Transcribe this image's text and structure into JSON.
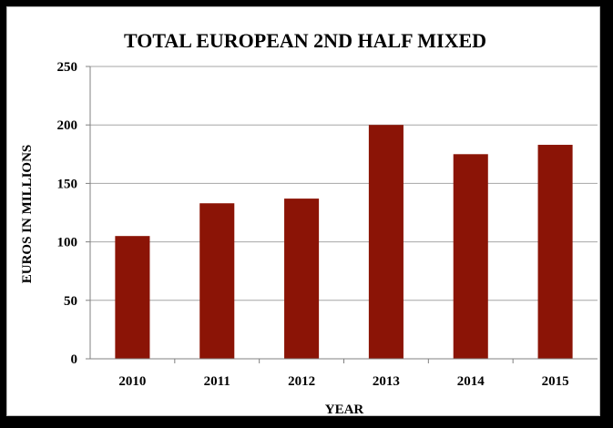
{
  "chart_data": {
    "type": "bar",
    "title": "TOTAL EUROPEAN 2ND HALF MIXED",
    "xlabel": "YEAR",
    "ylabel": "EUROS IN MILLIONS",
    "categories": [
      "2010",
      "2011",
      "2012",
      "2013",
      "2014",
      "2015"
    ],
    "values": [
      105,
      133,
      137,
      200,
      175,
      183
    ],
    "ylim": [
      0,
      250
    ],
    "yticks": [
      0,
      50,
      100,
      150,
      200,
      250
    ],
    "grid": true,
    "legend": "none",
    "bar_color": "#8b1406",
    "grid_color": "#a6a6a6"
  }
}
